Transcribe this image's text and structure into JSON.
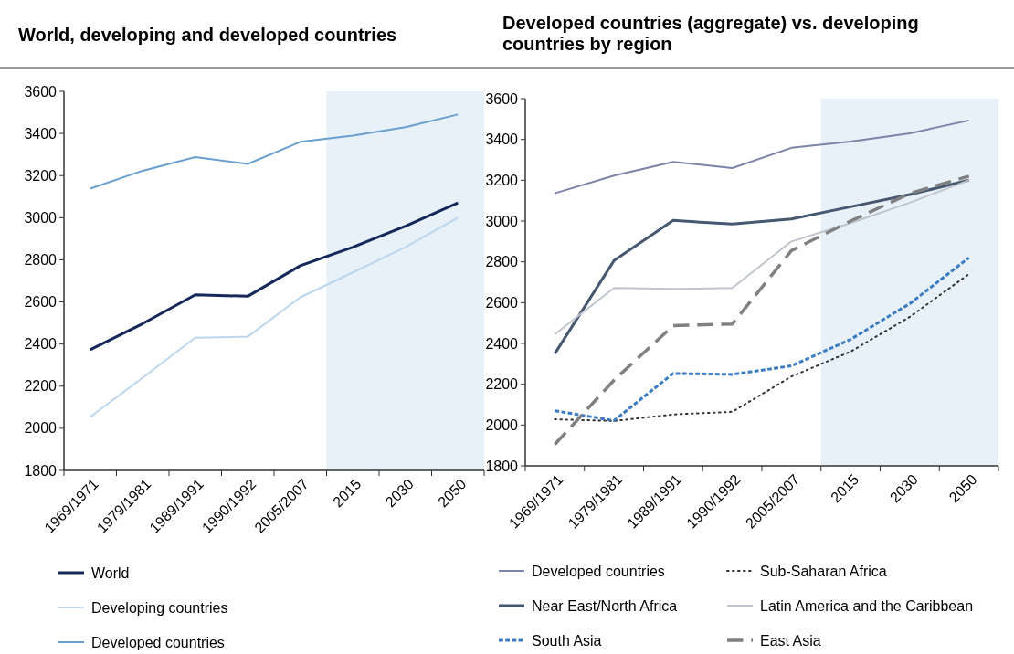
{
  "chart_data": [
    {
      "type": "line",
      "title": "World, developing and developed countries",
      "categories": [
        "1969/1971",
        "1979/1981",
        "1989/1991",
        "1990/1992",
        "2005/2007",
        "2015",
        "2030",
        "2050"
      ],
      "ylim": [
        1800,
        3600
      ],
      "yticks": [
        1800,
        2000,
        2200,
        2400,
        2600,
        2800,
        3000,
        3200,
        3400,
        3600
      ],
      "grid": false,
      "legend": "bottom",
      "bands": [
        {
          "axis": "x",
          "from": "2015",
          "to": "2050",
          "color": "#e8f0f8"
        }
      ],
      "series": [
        {
          "name": "World",
          "color": "#15285a",
          "line_style": "solid",
          "values": [
            2373,
            2497,
            2634,
            2627,
            2772,
            2860,
            2960,
            3070
          ]
        },
        {
          "name": "Developing countries",
          "color": "#bcd6ee",
          "line_style": "solid",
          "values": [
            2054,
            2240,
            2430,
            2435,
            2622,
            2740,
            2860,
            3000
          ]
        },
        {
          "name": "Developed countries",
          "color": "#6aa0d0",
          "line_style": "solid",
          "values": [
            3138,
            3223,
            3288,
            3255,
            3360,
            3390,
            3430,
            3490
          ]
        }
      ]
    },
    {
      "type": "line",
      "title": "Developed countries (aggregate) vs. developing countries by region",
      "categories": [
        "1969/1971",
        "1979/1981",
        "1989/1991",
        "1990/1992",
        "2005/2007",
        "2015",
        "2030",
        "2050"
      ],
      "ylim": [
        1800,
        3600
      ],
      "yticks": [
        1800,
        2000,
        2200,
        2400,
        2600,
        2800,
        3000,
        3200,
        3400,
        3600
      ],
      "grid": false,
      "legend": "bottom",
      "bands": [
        {
          "axis": "x",
          "from": "2015",
          "to": "2050",
          "color": "#e8f0f8"
        }
      ],
      "series": [
        {
          "name": "Developed countries",
          "color": "#7c84aa",
          "line_style": "solid",
          "values": [
            3136,
            3223,
            3290,
            3260,
            3359,
            3390,
            3430,
            3493
          ]
        },
        {
          "name": "Sub-Saharan Africa",
          "color": "#333333",
          "line_style": "dotted",
          "values": [
            2028,
            2020,
            2052,
            2065,
            2238,
            2360,
            2530,
            2740
          ]
        },
        {
          "name": "Near East/North Africa",
          "color": "#465870",
          "line_style": "solid",
          "values": [
            2350,
            2806,
            3003,
            2985,
            3010,
            3070,
            3130,
            3200
          ]
        },
        {
          "name": "Latin America and the Caribbean",
          "color": "#c0c4cc",
          "line_style": "solid",
          "values": [
            2445,
            2672,
            2667,
            2672,
            2900,
            2990,
            3090,
            3200
          ]
        },
        {
          "name": "South Asia",
          "color": "#3a7cc4",
          "line_style": "dashed",
          "values": [
            2070,
            2022,
            2253,
            2248,
            2290,
            2420,
            2595,
            2820
          ]
        },
        {
          "name": "East Asia",
          "color": "#808080",
          "line_style": "dashed",
          "values": [
            1905,
            2220,
            2487,
            2495,
            2855,
            3000,
            3135,
            3220
          ]
        }
      ]
    }
  ]
}
